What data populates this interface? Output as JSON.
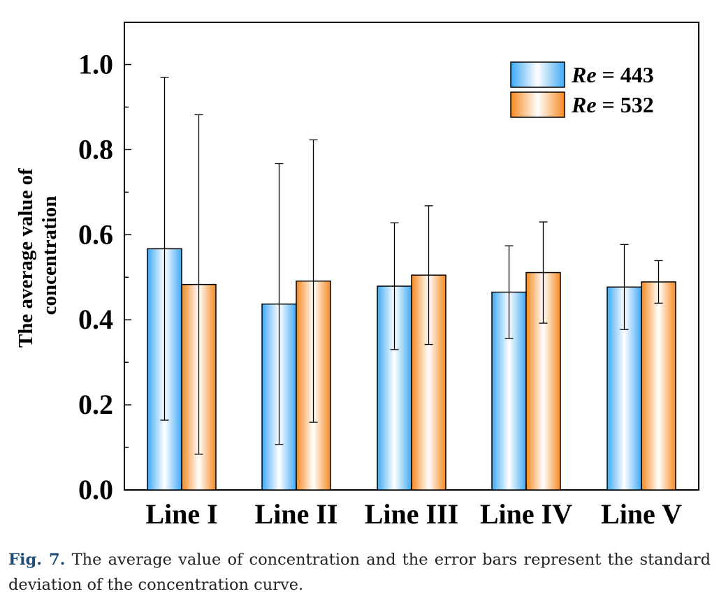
{
  "chart_data": {
    "type": "bar",
    "ylabel": "The average value of concentration",
    "ylabel_lines": [
      "The average value of",
      "concentration"
    ],
    "xlabel": "",
    "categories": [
      "Line I",
      "Line II",
      "Line III",
      "Line IV",
      "Line V"
    ],
    "ylim": [
      0.0,
      1.1
    ],
    "yticks": [
      {
        "value": 0.0,
        "label": "0.0"
      },
      {
        "value": 0.2,
        "label": "0.2"
      },
      {
        "value": 0.4,
        "label": "0.4"
      },
      {
        "value": 0.6,
        "label": "0.6"
      },
      {
        "value": 0.8,
        "label": "0.8"
      },
      {
        "value": 1.0,
        "label": "1.0"
      }
    ],
    "grid": false,
    "legend_position": "top-right",
    "series": [
      {
        "name": "Re = 443",
        "name_italic": "Re",
        "name_rest": " = 443",
        "color": "#3fa9f5",
        "values": [
          0.567,
          0.437,
          0.479,
          0.465,
          0.477
        ],
        "error": [
          0.403,
          0.33,
          0.149,
          0.109,
          0.1
        ]
      },
      {
        "name": "Re = 532",
        "name_italic": "Re",
        "name_rest": " = 532",
        "color": "#f5891f",
        "values": [
          0.483,
          0.491,
          0.505,
          0.511,
          0.489
        ],
        "error": [
          0.399,
          0.332,
          0.163,
          0.119,
          0.05
        ]
      }
    ]
  },
  "caption": {
    "label": "Fig. 7.",
    "text": " The average value of concentration and the error bars represent the standard deviation of the concentration curve."
  }
}
